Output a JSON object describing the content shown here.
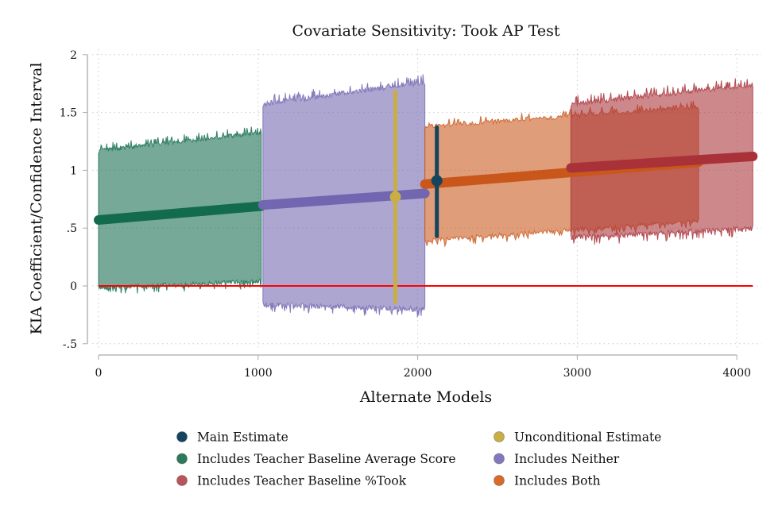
{
  "chart_data": {
    "type": "line",
    "title": "Covariate Sensitivity: Took AP Test",
    "xlabel": "Alternate Models",
    "ylabel": "KIA Coefficient/Confidence Interval",
    "xlim": [
      -80,
      4170
    ],
    "ylim": [
      -0.6,
      2.03
    ],
    "xticks": [
      0,
      1000,
      2000,
      3000,
      4000
    ],
    "xtick_labels": [
      "0",
      "1000",
      "2000",
      "3000",
      "4000"
    ],
    "yticks": [
      2,
      1.5,
      1,
      0.5,
      0,
      -0.5
    ],
    "ytick_labels": [
      "2",
      "1.5",
      "1",
      ".5",
      "0",
      "-.5"
    ],
    "grid": true,
    "legend_position": "bottom",
    "reference_line": {
      "y": 0,
      "x_range": [
        0,
        4100
      ],
      "color": "#ff0000"
    },
    "series": [
      {
        "name": "Includes Teacher Baseline Average Score",
        "color": "#136b4d",
        "x_range": [
          0,
          1020
        ],
        "estimate": [
          0.57,
          0.69
        ],
        "ci_lower": [
          0.0,
          0.06
        ],
        "ci_upper": [
          1.15,
          1.31
        ],
        "noise": 0.05
      },
      {
        "name": "Includes Neither",
        "color": "#7266b0",
        "x_range": [
          1030,
          2045
        ],
        "estimate": [
          0.7,
          0.8
        ],
        "ci_lower": [
          -0.14,
          -0.18
        ],
        "ci_upper": [
          1.55,
          1.74
        ],
        "noise": 0.06
      },
      {
        "name": "Includes Both",
        "color": "#c9561a",
        "x_range": [
          2045,
          3760
        ],
        "estimate": [
          0.88,
          1.07
        ],
        "ci_lower": [
          0.41,
          0.58
        ],
        "ci_upper": [
          1.36,
          1.53
        ],
        "noise": 0.05
      },
      {
        "name": "Includes Teacher Baseline %Took",
        "color": "#a83238",
        "x_range": [
          2960,
          4100
        ],
        "estimate": [
          1.02,
          1.12
        ],
        "ci_lower": [
          0.44,
          0.52
        ],
        "ci_upper": [
          1.55,
          1.72
        ],
        "noise": 0.06
      }
    ],
    "point_estimates": [
      {
        "name": "Main Estimate",
        "color": "#15455e",
        "x": 2120,
        "estimate": 0.91,
        "ci": [
          0.43,
          1.37
        ]
      },
      {
        "name": "Unconditional Estimate",
        "color": "#c8ae45",
        "x": 1860,
        "estimate": 0.77,
        "ci": [
          -0.14,
          1.68
        ]
      }
    ]
  },
  "legend": [
    {
      "label": "Main Estimate",
      "color": "#15455e"
    },
    {
      "label": "Unconditional Estimate",
      "color": "#c8ae45"
    },
    {
      "label": "Includes Teacher Baseline Average Score",
      "color": "#2c7a5c"
    },
    {
      "label": "Includes Neither",
      "color": "#8477c0"
    },
    {
      "label": "Includes Teacher Baseline %Took",
      "color": "#b8545a"
    },
    {
      "label": "Includes Both",
      "color": "#d86a2a"
    }
  ]
}
